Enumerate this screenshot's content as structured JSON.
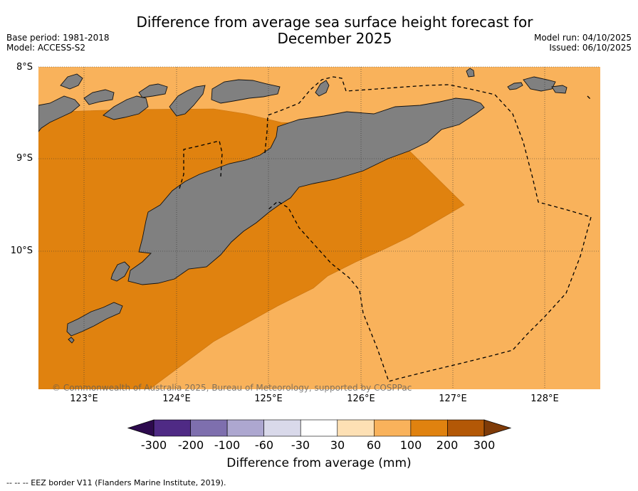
{
  "title_line1": "Difference from average sea surface height forecast for",
  "title_line2": "December 2025",
  "meta": {
    "base_period": "Base period: 1981-2018",
    "model": "Model: ACCESS-S2",
    "model_run": "Model run: 04/10/2025",
    "issued": "Issued: 06/10/2025"
  },
  "lat_labels": [
    "8°S",
    "9°S",
    "10°S"
  ],
  "lon_labels": [
    "123°E",
    "124°E",
    "125°E",
    "126°E",
    "127°E",
    "128°E"
  ],
  "copyright": "© Commonwealth of Australia 2025, Bureau of Meteorology, supported by COSPPac",
  "colorbar": {
    "title": "Difference from average (mm)",
    "ticks": [
      "-300",
      "-200",
      "-100",
      "-60",
      "-30",
      "30",
      "60",
      "100",
      "200",
      "300"
    ],
    "colors": [
      "#2d0a4e",
      "#4f2a85",
      "#7e6fae",
      "#ada7d0",
      "#d9d9ea",
      "#ffffff",
      "#fde0b4",
      "#f9b25b",
      "#e0820f",
      "#b35806",
      "#7f3b08"
    ]
  },
  "footer": "--  --  -- EEZ border V11 (Flanders Marine Institute, 2019).",
  "map_colors": {
    "land": "#808080",
    "band_60_100": "#f9b25b",
    "band_100_200": "#e0820f"
  }
}
